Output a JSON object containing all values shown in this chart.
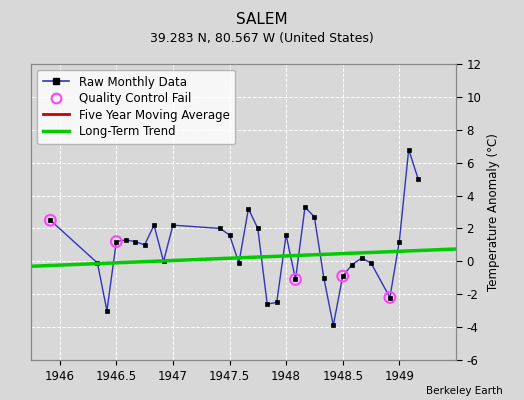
{
  "title": "SALEM",
  "subtitle": "39.283 N, 80.567 W (United States)",
  "ylabel": "Temperature Anomaly (°C)",
  "credit": "Berkeley Earth",
  "background_color": "#d8d8d8",
  "plot_bg_color": "#d8d8d8",
  "xlim": [
    1945.75,
    1949.5
  ],
  "ylim": [
    -6,
    12
  ],
  "yticks": [
    -6,
    -4,
    -2,
    0,
    2,
    4,
    6,
    8,
    10,
    12
  ],
  "xticks": [
    1946,
    1946.5,
    1947,
    1947.5,
    1948,
    1948.5,
    1949
  ],
  "raw_x": [
    1945.917,
    1946.333,
    1946.417,
    1946.5,
    1946.583,
    1946.667,
    1946.75,
    1946.833,
    1946.917,
    1947.0,
    1947.417,
    1947.5,
    1947.583,
    1947.667,
    1947.75,
    1947.833,
    1947.917,
    1948.0,
    1948.083,
    1948.167,
    1948.25,
    1948.333,
    1948.417,
    1948.5,
    1948.583,
    1948.667,
    1948.75,
    1948.917,
    1949.0,
    1949.083,
    1949.167
  ],
  "raw_y": [
    2.5,
    -0.1,
    -3.0,
    1.2,
    1.3,
    1.2,
    1.0,
    2.2,
    0.0,
    2.2,
    2.0,
    1.6,
    -0.1,
    3.2,
    2.0,
    -2.6,
    -2.5,
    1.6,
    -1.1,
    3.3,
    2.7,
    -1.0,
    -3.9,
    -0.9,
    -0.2,
    0.2,
    -0.1,
    -2.2,
    1.2,
    6.8,
    5.0
  ],
  "qc_fail_x": [
    1945.917,
    1946.5,
    1948.083,
    1948.5,
    1948.917
  ],
  "qc_fail_y": [
    2.5,
    1.2,
    -1.1,
    -0.9,
    -2.2
  ],
  "trend_x": [
    1945.75,
    1949.5
  ],
  "trend_y": [
    -0.3,
    0.75
  ],
  "raw_line_color": "#3333bb",
  "raw_marker_color": "#000000",
  "qc_color": "#ff44ff",
  "trend_color": "#00cc00",
  "moving_avg_color": "#cc0000",
  "grid_color": "#ffffff",
  "legend_fontsize": 8.5,
  "title_fontsize": 11,
  "subtitle_fontsize": 9,
  "tick_fontsize": 8.5,
  "ylabel_fontsize": 8.5
}
